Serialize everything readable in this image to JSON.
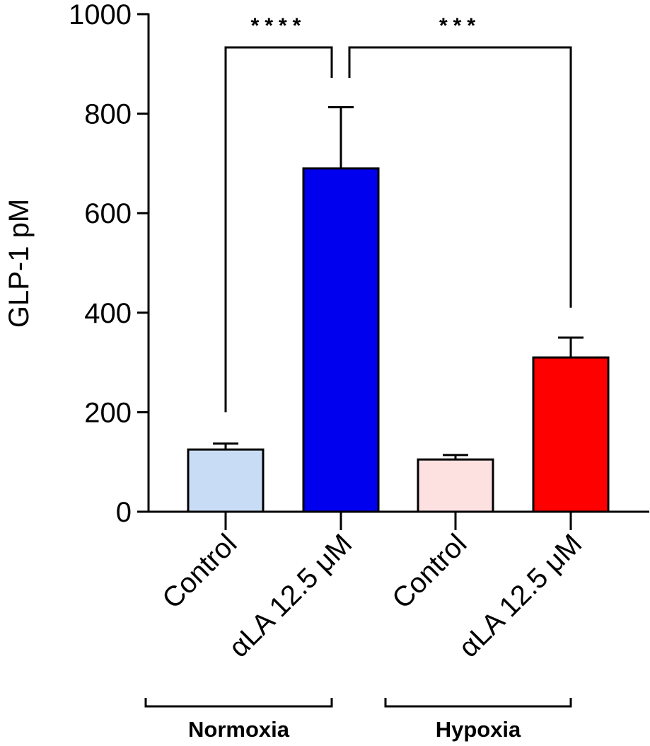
{
  "chart_data": {
    "type": "bar",
    "title": "",
    "xlabel": "",
    "ylabel": "GLP-1 pM",
    "ylim": [
      0,
      1000
    ],
    "yticks": [
      0,
      200,
      400,
      600,
      800,
      1000
    ],
    "categories": [
      "Control",
      "αLA 12.5 μM",
      "Control",
      "αLA 12.5 μM"
    ],
    "values": [
      125,
      690,
      105,
      310
    ],
    "errors": [
      12,
      123,
      9,
      40
    ],
    "bar_colors": [
      "#c9dcf5",
      "#0000ee",
      "#fde0e0",
      "#ff0000"
    ],
    "groups": [
      {
        "label": "Normoxia",
        "bars": [
          0,
          1
        ]
      },
      {
        "label": "Hypoxia",
        "bars": [
          2,
          3
        ]
      }
    ],
    "significance": [
      {
        "from": 0,
        "to": 1,
        "label": "****"
      },
      {
        "from": 1,
        "to": 3,
        "label": "***"
      }
    ],
    "grid": false,
    "legend": "none"
  }
}
